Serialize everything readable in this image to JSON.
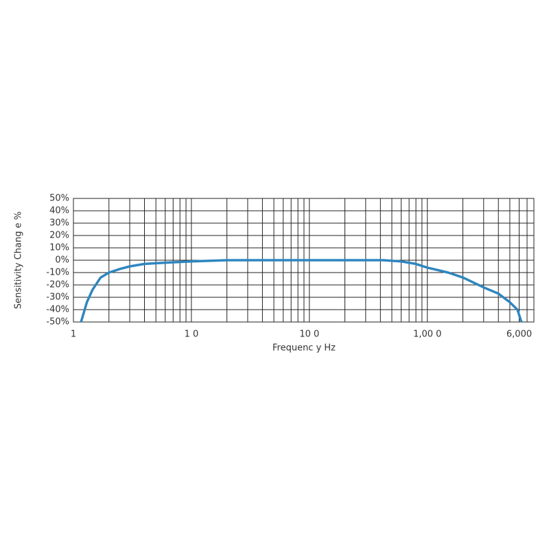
{
  "chart_data": {
    "type": "line",
    "log_x": true,
    "grid": true,
    "xlabel": "Frequenc y Hz",
    "ylabel": "Sensitivity Chang e %",
    "xlim": [
      1,
      8000
    ],
    "ylim": [
      -50,
      50
    ],
    "xticks": [
      1,
      {
        "value": 10,
        "label": "1 0"
      },
      {
        "value": 100,
        "label": "10 0"
      },
      {
        "value": 1000,
        "label": "1,00 0"
      },
      {
        "value": 6000,
        "label": "6,000"
      }
    ],
    "x_minor_ticks": [
      2,
      3,
      4,
      5,
      6,
      7,
      8,
      9,
      20,
      30,
      40,
      50,
      60,
      70,
      80,
      90,
      200,
      300,
      400,
      500,
      600,
      700,
      800,
      900,
      2000,
      3000,
      4000,
      5000,
      7000
    ],
    "yticks": [
      {
        "value": 50,
        "label": "50%"
      },
      {
        "value": 40,
        "label": "40%"
      },
      {
        "value": 30,
        "label": "30%"
      },
      {
        "value": 20,
        "label": "20%"
      },
      {
        "value": 10,
        "label": "10%"
      },
      {
        "value": 0,
        "label": "0%"
      },
      {
        "value": -10,
        "label": "-10%"
      },
      {
        "value": -20,
        "label": "-20%"
      },
      {
        "value": -30,
        "label": "-30%"
      },
      {
        "value": -40,
        "label": "-40%"
      },
      {
        "value": -50,
        "label": "-50%"
      }
    ],
    "series": [
      {
        "color": "#2e86bf",
        "x": [
          1.16,
          1.3,
          1.45,
          1.7,
          2,
          2.5,
          3,
          4,
          6,
          10,
          20,
          50,
          100,
          200,
          425,
          600,
          800,
          1000,
          1500,
          2000,
          3000,
          4000,
          5000,
          5800,
          6270
        ],
        "values": [
          -50,
          -34,
          -24,
          -14,
          -10,
          -7,
          -5,
          -3,
          -2,
          -1,
          0,
          0,
          0,
          0,
          0,
          -1,
          -3,
          -6,
          -10,
          -14,
          -22,
          -27,
          -34,
          -40,
          -50
        ]
      }
    ]
  }
}
